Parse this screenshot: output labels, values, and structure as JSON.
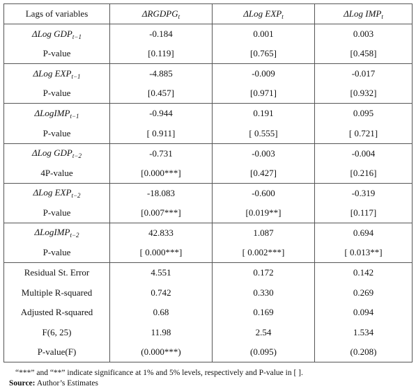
{
  "header": {
    "col0": "Lags of variables",
    "col1": {
      "delta": "Δ",
      "base": "RGDPG",
      "sub": "t"
    },
    "col2": {
      "delta": "Δ",
      "base": "Log EXP",
      "sub": "t"
    },
    "col3": {
      "delta": "Δ",
      "base": "Log IMP",
      "sub": "t"
    }
  },
  "groups": [
    {
      "var": {
        "delta": "Δ",
        "base": "Log GDP",
        "sub": "t−1"
      },
      "coef": [
        "-0.184",
        "0.001",
        "0.003"
      ],
      "plabel": "P-value",
      "pvals": [
        "[0.119]",
        "[0.765]",
        "[0.458]"
      ]
    },
    {
      "var": {
        "delta": "Δ",
        "base": "Log EXP",
        "sub": "t−1"
      },
      "coef": [
        "-4.885",
        "-0.009",
        "-0.017"
      ],
      "plabel": "P-value",
      "pvals": [
        "[0.457]",
        "[0.971]",
        "[0.932]"
      ]
    },
    {
      "var": {
        "delta": "Δ",
        "base": "LogIMP",
        "sub": "t−1"
      },
      "coef": [
        "-0.944",
        "0.191",
        "0.095"
      ],
      "plabel": "P-value",
      "pvals": [
        "[ 0.911]",
        "[ 0.555]",
        "[ 0.721]"
      ]
    },
    {
      "var": {
        "delta": "Δ",
        "base": "Log GDP",
        "sub": "t−2"
      },
      "coef": [
        "-0.731",
        "-0.003",
        "-0.004"
      ],
      "plabel": "4P-value",
      "pvals": [
        "[0.000***]",
        "[0.427]",
        "[0.216]"
      ]
    },
    {
      "var": {
        "delta": "Δ",
        "base": "Log EXP",
        "sub": "t−2"
      },
      "coef": [
        "-18.083",
        "-0.600",
        "-0.319"
      ],
      "plabel": "P-value",
      "pvals": [
        "[0.007***]",
        "[0.019**]",
        "[0.117]"
      ]
    },
    {
      "var": {
        "delta": "Δ",
        "base": "LogIMP",
        "sub": "t−2"
      },
      "coef": [
        "42.833",
        "1.087",
        "0.694"
      ],
      "plabel": "P-value",
      "pvals": [
        "[ 0.000***]",
        "[ 0.002***]",
        "[ 0.013**]"
      ]
    }
  ],
  "stats": [
    {
      "label": "Residual St. Error",
      "values": [
        "4.551",
        "0.172",
        "0.142"
      ]
    },
    {
      "label": "Multiple R-squared",
      "values": [
        "0.742",
        "0.330",
        "0.269"
      ]
    },
    {
      "label": "Adjusted R-squared",
      "values": [
        "0.68",
        "0.169",
        "0.094"
      ]
    },
    {
      "label": "F(6, 25)",
      "values": [
        "11.98",
        "2.54",
        "1.534"
      ]
    },
    {
      "label": "P-value(F)",
      "values": [
        "(0.000***)",
        "(0.095)",
        "(0.208)"
      ]
    }
  ],
  "note": "“***” and “**” indicate significance at 1% and 5% levels, respectively and P-value in [ ].",
  "source_label": "Source:",
  "source_text": " Author’s Estimates"
}
